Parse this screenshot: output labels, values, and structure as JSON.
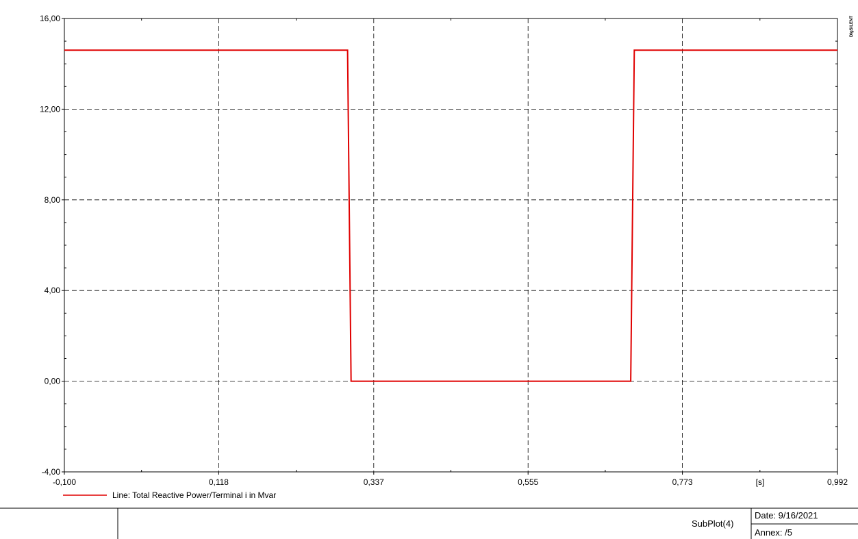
{
  "chart_data": {
    "type": "line",
    "brand": "DIgSILENT",
    "xlim": [
      -0.1,
      0.992
    ],
    "ylim": [
      -4.0,
      16.0
    ],
    "x_ticks": [
      "-0,100",
      "0,118",
      "0,337",
      "0,555",
      "0,773",
      "0,992"
    ],
    "x_tick_values": [
      -0.1,
      0.118,
      0.337,
      0.555,
      0.773,
      0.992
    ],
    "y_ticks": [
      "16,00",
      "12,00",
      "8,00",
      "4,00",
      "0,00",
      "-4,00"
    ],
    "y_tick_values": [
      16,
      12,
      8,
      4,
      0,
      -4
    ],
    "x_unit": "[s]",
    "grid": true,
    "legend_position": "bottom-left",
    "series": [
      {
        "name": "Line: Total Reactive Power/Terminal i in Mvar",
        "color": "#e00000",
        "x": [
          -0.1,
          0.3,
          0.305,
          0.7,
          0.705,
          0.992
        ],
        "y": [
          14.6,
          14.6,
          0.0,
          0.0,
          14.6,
          14.6
        ]
      }
    ]
  },
  "footer": {
    "subplot_label": "SubPlot(4)",
    "date_label": "Date: 9/16/2021",
    "annex_label": "Annex:  /5"
  }
}
